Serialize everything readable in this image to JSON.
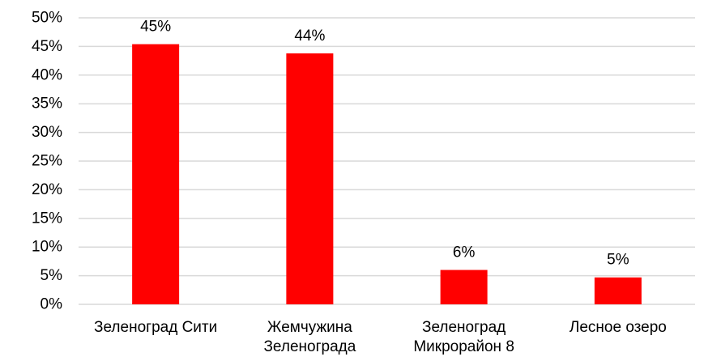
{
  "chart_data": {
    "type": "bar",
    "categories": [
      [
        "Зеленоград Сити"
      ],
      [
        "Жемчужина",
        "Зеленограда"
      ],
      [
        "Зеленоград",
        "Микрорайон 8"
      ],
      [
        "Лесное озеро"
      ]
    ],
    "values": [
      45.4,
      43.8,
      6.0,
      4.7
    ],
    "data_labels": [
      "45%",
      "44%",
      "6%",
      "5%"
    ],
    "ylim": [
      0,
      50
    ],
    "yticks": [
      0,
      5,
      10,
      15,
      20,
      25,
      30,
      35,
      40,
      45,
      50
    ],
    "ytick_labels": [
      "0%",
      "5%",
      "10%",
      "15%",
      "20%",
      "25%",
      "30%",
      "35%",
      "40%",
      "45%",
      "50%"
    ],
    "grid": true,
    "legend": "none",
    "title": "",
    "xlabel": "",
    "ylabel": "",
    "colors": {
      "bar": "#ff0000",
      "grid": "#d9d9d9",
      "text": "#000000"
    }
  }
}
